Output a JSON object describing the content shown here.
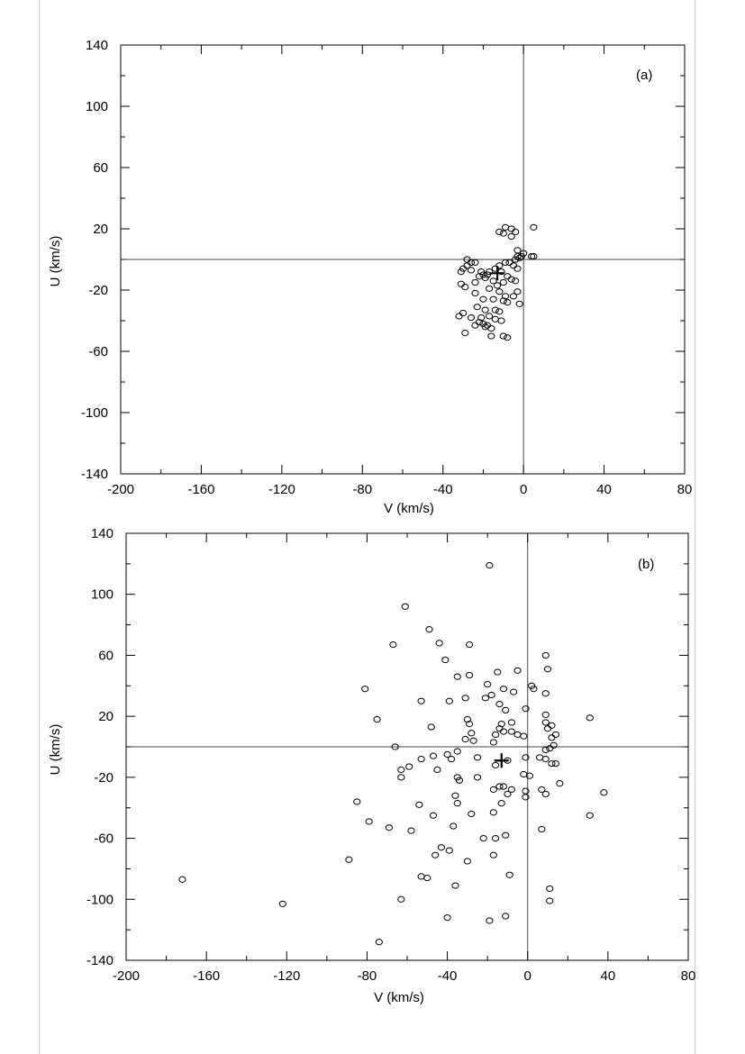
{
  "chart_data": [
    {
      "type": "scatter",
      "panel_label": "(a)",
      "xlabel": "V (km/s)",
      "ylabel": "U (km/s)",
      "xlim": [
        -200,
        80
      ],
      "ylim": [
        -140,
        140
      ],
      "x_ticks": [
        -200,
        -160,
        -120,
        -80,
        -40,
        0,
        40,
        80
      ],
      "y_ticks": [
        140,
        100,
        60,
        20,
        -20,
        -60,
        -100,
        -140
      ],
      "x_tick_labels": [
        "-200",
        "-160",
        "-120",
        "-80",
        "-40",
        "0",
        "40",
        "80"
      ],
      "y_tick_labels": [
        "140",
        "100",
        "60",
        "20",
        "-20",
        "-60",
        "-100",
        "-140"
      ],
      "reference_lines": {
        "v": 0,
        "u": 0
      },
      "mean_marker": {
        "v": -13,
        "u": -9
      },
      "points": [
        [
          -9,
          21
        ],
        [
          -6,
          20
        ],
        [
          5,
          21
        ],
        [
          -12,
          18
        ],
        [
          -10,
          17
        ],
        [
          -4,
          18
        ],
        [
          -6,
          15
        ],
        [
          -3,
          6
        ],
        [
          0,
          4
        ],
        [
          -2,
          1
        ],
        [
          -4,
          0
        ],
        [
          -1,
          2
        ],
        [
          -3,
          2
        ],
        [
          4,
          2
        ],
        [
          5,
          2
        ],
        [
          -28,
          0
        ],
        [
          -26,
          -2
        ],
        [
          -24,
          -2
        ],
        [
          -28,
          -4
        ],
        [
          -30,
          -6
        ],
        [
          -26,
          -7
        ],
        [
          -31,
          -8
        ],
        [
          -21,
          -8
        ],
        [
          -17,
          -8
        ],
        [
          -20,
          -10
        ],
        [
          -18,
          -10
        ],
        [
          -14,
          -6
        ],
        [
          -12,
          -4
        ],
        [
          -9,
          -2
        ],
        [
          -7,
          -2
        ],
        [
          -5,
          -4
        ],
        [
          -3,
          -6
        ],
        [
          -11,
          -8
        ],
        [
          -8,
          -11
        ],
        [
          -6,
          -13
        ],
        [
          -4,
          -14
        ],
        [
          -10,
          -15
        ],
        [
          -13,
          -17
        ],
        [
          -15,
          -14
        ],
        [
          -22,
          -11
        ],
        [
          -19,
          -12
        ],
        [
          -24,
          -15
        ],
        [
          -17,
          -19
        ],
        [
          -12,
          -21
        ],
        [
          -9,
          -24
        ],
        [
          -5,
          -24
        ],
        [
          -3,
          -21
        ],
        [
          -29,
          -18
        ],
        [
          -31,
          -16
        ],
        [
          -24,
          -22
        ],
        [
          -20,
          -26
        ],
        [
          -15,
          -26
        ],
        [
          -10,
          -27
        ],
        [
          -8,
          -28
        ],
        [
          -2,
          -29
        ],
        [
          -23,
          -31
        ],
        [
          -19,
          -33
        ],
        [
          -14,
          -33
        ],
        [
          -12,
          -34
        ],
        [
          -30,
          -35
        ],
        [
          -32,
          -37
        ],
        [
          -26,
          -38
        ],
        [
          -21,
          -38
        ],
        [
          -17,
          -37
        ],
        [
          -14,
          -39
        ],
        [
          -11,
          -40
        ],
        [
          -22,
          -41
        ],
        [
          -20,
          -42
        ],
        [
          -18,
          -43
        ],
        [
          -24,
          -43
        ],
        [
          -19,
          -44
        ],
        [
          -16,
          -45
        ],
        [
          -29,
          -48
        ],
        [
          -16,
          -50
        ],
        [
          -10,
          -50
        ],
        [
          -8,
          -51
        ]
      ]
    },
    {
      "type": "scatter",
      "panel_label": "(b)",
      "xlabel": "V (km/s)",
      "ylabel": "U (km/s)",
      "xlim": [
        -200,
        80
      ],
      "ylim": [
        -140,
        140
      ],
      "x_ticks": [
        -200,
        -160,
        -120,
        -80,
        -40,
        0,
        40,
        80
      ],
      "y_ticks": [
        140,
        100,
        60,
        20,
        -20,
        -60,
        -100,
        -140
      ],
      "x_tick_labels": [
        "-200",
        "-160",
        "-120",
        "-80",
        "-40",
        "0",
        "40",
        "80"
      ],
      "y_tick_labels": [
        "140",
        "100",
        "60",
        "20",
        "-20",
        "-60",
        "-100",
        "-140"
      ],
      "reference_lines": {
        "v": 0,
        "u": 0
      },
      "mean_marker": {
        "v": -13,
        "u": -9
      },
      "points": [
        [
          -19,
          119
        ],
        [
          -61,
          92
        ],
        [
          -49,
          77
        ],
        [
          -44,
          68
        ],
        [
          -67,
          67
        ],
        [
          -29,
          67
        ],
        [
          9,
          60
        ],
        [
          -41,
          57
        ],
        [
          10,
          51
        ],
        [
          -5,
          50
        ],
        [
          -15,
          49
        ],
        [
          -35,
          46
        ],
        [
          -29,
          47
        ],
        [
          2,
          40
        ],
        [
          3,
          38
        ],
        [
          -20,
          41
        ],
        [
          -12,
          38
        ],
        [
          -31,
          32
        ],
        [
          -21,
          32
        ],
        [
          -18,
          34
        ],
        [
          -7,
          36
        ],
        [
          9,
          35
        ],
        [
          -81,
          38
        ],
        [
          -53,
          30
        ],
        [
          -39,
          30
        ],
        [
          -14,
          28
        ],
        [
          -11,
          24
        ],
        [
          -1,
          25
        ],
        [
          -75,
          18
        ],
        [
          -48,
          13
        ],
        [
          -30,
          18
        ],
        [
          -29,
          15
        ],
        [
          -13,
          15
        ],
        [
          -8,
          16
        ],
        [
          9,
          21
        ],
        [
          9,
          16
        ],
        [
          12,
          14
        ],
        [
          10,
          12
        ],
        [
          -14,
          12
        ],
        [
          -12,
          10
        ],
        [
          -16,
          8
        ],
        [
          -8,
          10
        ],
        [
          -28,
          9
        ],
        [
          -27,
          4
        ],
        [
          -31,
          5
        ],
        [
          -17,
          3
        ],
        [
          -5,
          8
        ],
        [
          -2,
          7
        ],
        [
          31,
          19
        ],
        [
          14,
          8
        ],
        [
          12,
          6
        ],
        [
          13,
          1
        ],
        [
          11,
          -1
        ],
        [
          9,
          -2
        ],
        [
          -66,
          0
        ],
        [
          -35,
          -3
        ],
        [
          -40,
          -5
        ],
        [
          -47,
          -6
        ],
        [
          -53,
          -8
        ],
        [
          -38,
          -8
        ],
        [
          -25,
          -7
        ],
        [
          -1,
          -7
        ],
        [
          6,
          -7
        ],
        [
          9,
          -8
        ],
        [
          12,
          -11
        ],
        [
          -16,
          -12
        ],
        [
          -10,
          -9
        ],
        [
          -59,
          -13
        ],
        [
          -63,
          -15
        ],
        [
          -45,
          -15
        ],
        [
          -35,
          -20
        ],
        [
          -34,
          -22
        ],
        [
          -25,
          -20
        ],
        [
          -63,
          -20
        ],
        [
          -2,
          -18
        ],
        [
          1,
          -19
        ],
        [
          14,
          -11
        ],
        [
          16,
          -24
        ],
        [
          38,
          -30
        ],
        [
          31,
          -45
        ],
        [
          -12,
          -26
        ],
        [
          -14,
          -26
        ],
        [
          -17,
          -28
        ],
        [
          -8,
          -28
        ],
        [
          -10,
          -31
        ],
        [
          -1,
          -29
        ],
        [
          -1,
          -33
        ],
        [
          -36,
          -32
        ],
        [
          -35,
          -37
        ],
        [
          -54,
          -38
        ],
        [
          -85,
          -36
        ],
        [
          -47,
          -45
        ],
        [
          -13,
          -37
        ],
        [
          -17,
          -43
        ],
        [
          -28,
          -44
        ],
        [
          -69,
          -53
        ],
        [
          -58,
          -55
        ],
        [
          -37,
          -52
        ],
        [
          -16,
          -60
        ],
        [
          -22,
          -60
        ],
        [
          7,
          -54
        ],
        [
          -43,
          -66
        ],
        [
          -39,
          -68
        ],
        [
          -46,
          -71
        ],
        [
          -17,
          -71
        ],
        [
          -30,
          -75
        ],
        [
          -11,
          -58
        ],
        [
          -89,
          -74
        ],
        [
          -53,
          -85
        ],
        [
          -50,
          -86
        ],
        [
          -9,
          -84
        ],
        [
          -36,
          -91
        ],
        [
          11,
          -93
        ],
        [
          11,
          -101
        ],
        [
          -63,
          -100
        ],
        [
          -122,
          -103
        ],
        [
          -172,
          -87
        ],
        [
          -40,
          -112
        ],
        [
          -19,
          -114
        ],
        [
          -11,
          -111
        ],
        [
          -74,
          -128
        ],
        [
          -79,
          -49
        ],
        [
          7,
          -28
        ],
        [
          9,
          -31
        ]
      ]
    }
  ]
}
